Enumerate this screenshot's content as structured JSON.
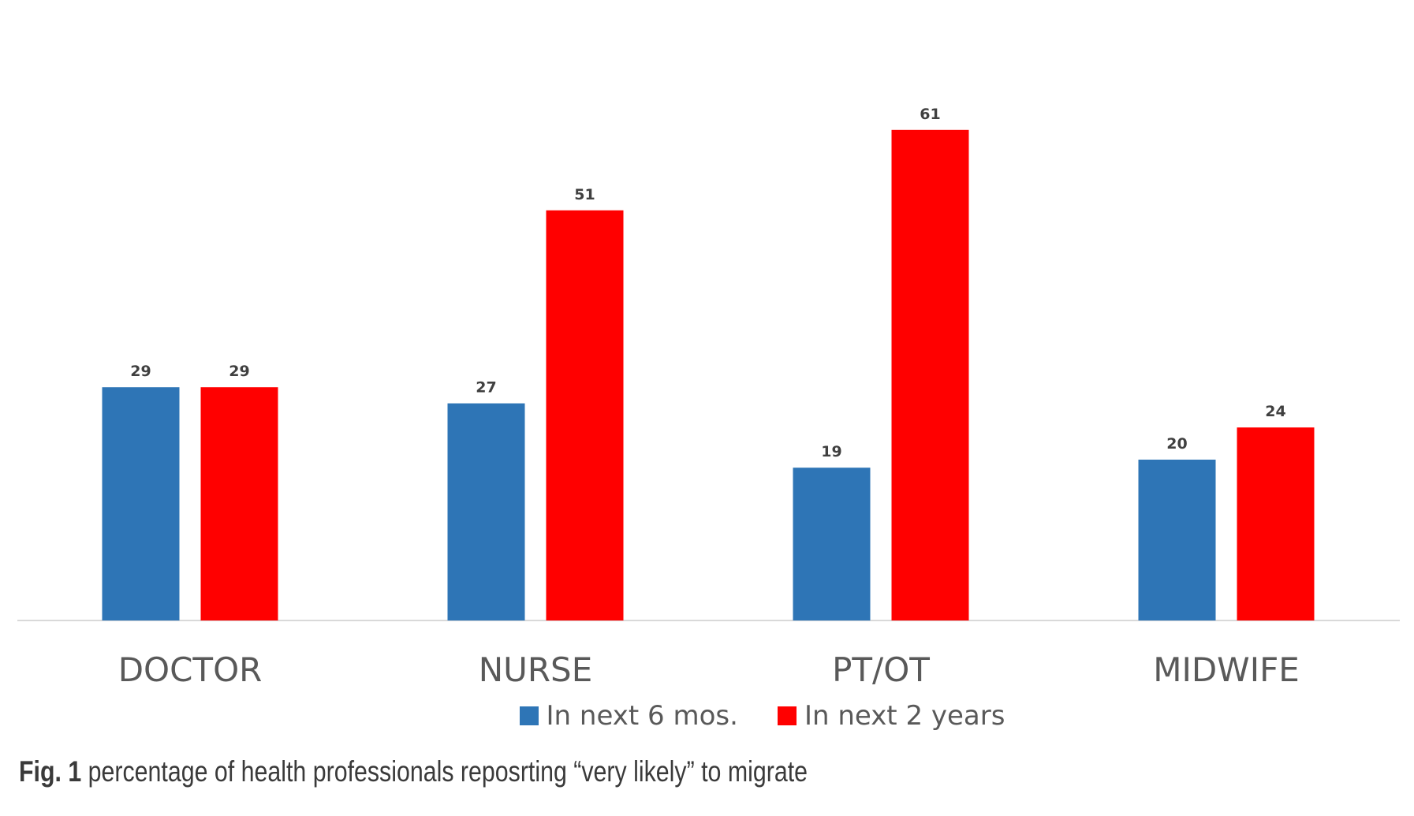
{
  "chart_data": {
    "type": "bar",
    "categories": [
      "DOCTOR",
      "NURSE",
      "PT/OT",
      "MIDWIFE"
    ],
    "series": [
      {
        "name": "In next 6 mos.",
        "values": [
          29,
          27,
          19,
          20
        ],
        "color": "#2e75b6"
      },
      {
        "name": "In next 2 years",
        "values": [
          29,
          51,
          61,
          24
        ],
        "color": "#ff0000"
      }
    ],
    "data_labels": true,
    "ylim": [
      0,
      70
    ],
    "grid": false,
    "legend_position": "bottom"
  },
  "caption": {
    "label": "Fig. 1",
    "text": "percentage of health professionals reposrting “very likely” to migrate"
  },
  "colors": {
    "axis_line": "#d9d9d9",
    "category_text": "#595959",
    "data_label_text": "#404040"
  }
}
